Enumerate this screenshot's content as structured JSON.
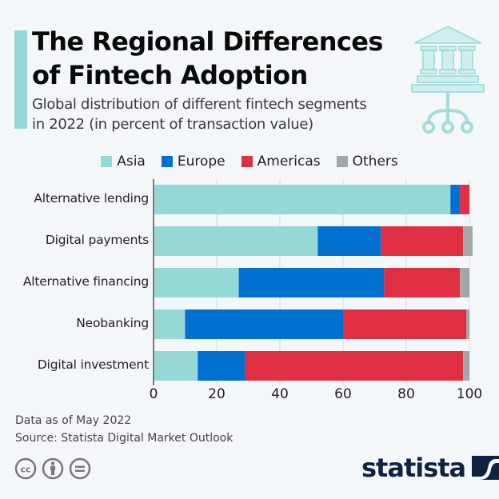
{
  "header": {
    "title_line1": "The Regional Differences",
    "title_line2": "of Fintech Adoption",
    "subtitle_line1": "Global distribution of different fintech segments",
    "subtitle_line2": "in 2022 (in percent of transaction value)",
    "icon": "bank-building-icon"
  },
  "legend": [
    {
      "label": "Asia",
      "color": "#96d8d6"
    },
    {
      "label": "Europe",
      "color": "#0070d1"
    },
    {
      "label": "Americas",
      "color": "#e02e42"
    },
    {
      "label": "Others",
      "color": "#a6a6a6"
    }
  ],
  "chart_data": {
    "type": "bar",
    "orientation": "horizontal",
    "stacked": true,
    "title": "The Regional Differences of Fintech Adoption",
    "subtitle": "Global distribution of different fintech segments in 2022 (in percent of transaction value)",
    "categories": [
      "Alternative lending",
      "Digital payments",
      "Alternative financing",
      "Neobanking",
      "Digital investment"
    ],
    "series": [
      {
        "name": "Asia",
        "color": "#96d8d6",
        "values": [
          94,
          52,
          27,
          10,
          14
        ]
      },
      {
        "name": "Europe",
        "color": "#0070d1",
        "values": [
          3,
          20,
          46,
          50,
          15
        ]
      },
      {
        "name": "Americas",
        "color": "#e02e42",
        "values": [
          3,
          26,
          24,
          39,
          69
        ]
      },
      {
        "name": "Others",
        "color": "#a6a6a6",
        "values": [
          0,
          3,
          3,
          1,
          2
        ]
      }
    ],
    "xlabel": "",
    "ylabel": "",
    "xlim": [
      0,
      100
    ],
    "xticks": [
      0,
      20,
      40,
      60,
      80,
      100
    ],
    "grid": true,
    "legend_position": "top"
  },
  "footer": {
    "note": "Data as of May 2022",
    "source": "Source: Statista Digital Market Outlook",
    "license_icons": [
      "cc-icon",
      "attribution-icon",
      "no-derivatives-icon"
    ],
    "brand": "statista"
  }
}
